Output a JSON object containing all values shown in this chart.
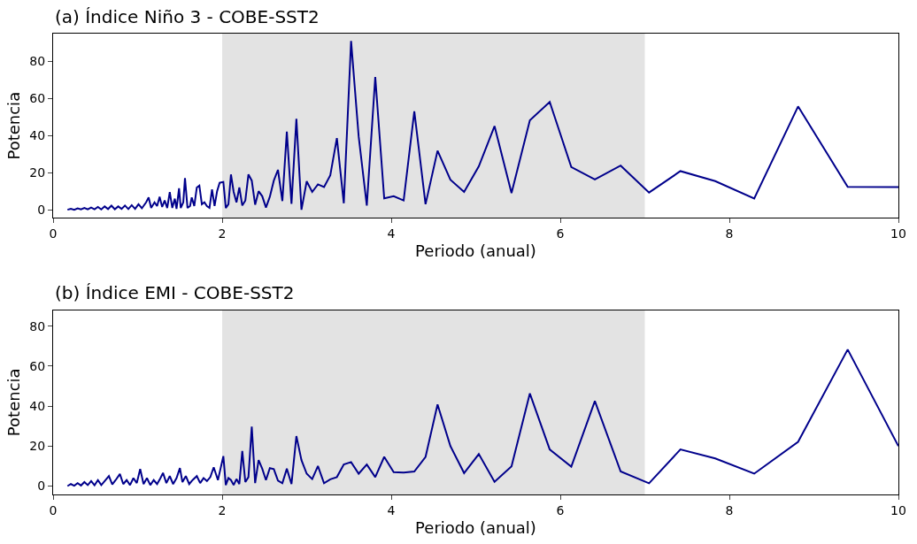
{
  "chart_data": [
    {
      "type": "line",
      "title": "(a) Índice Niño 3 - COBE-SST2",
      "xlabel": "Periodo (anual)",
      "ylabel": "Potencia",
      "xlim": [
        0,
        10
      ],
      "xticks": [
        0,
        2,
        4,
        6,
        8,
        10
      ],
      "ylim": [
        -4.4,
        94.8
      ],
      "yticks": [
        0,
        20,
        40,
        60,
        80
      ],
      "grid": false,
      "marker": "none",
      "line_style": "solid",
      "bands": [
        {
          "axis": "x",
          "from": 2,
          "to": 7,
          "color": "#e3e3e3"
        }
      ],
      "series": [
        {
          "color": "#00008b",
          "x": [
            0.17,
            0.21,
            0.25,
            0.29,
            0.33,
            0.37,
            0.41,
            0.45,
            0.49,
            0.53,
            0.57,
            0.61,
            0.65,
            0.69,
            0.73,
            0.77,
            0.81,
            0.85,
            0.89,
            0.93,
            0.97,
            1.01,
            1.05,
            1.1,
            1.13,
            1.16,
            1.2,
            1.23,
            1.26,
            1.29,
            1.32,
            1.35,
            1.38,
            1.41,
            1.44,
            1.46,
            1.49,
            1.51,
            1.54,
            1.56,
            1.59,
            1.62,
            1.64,
            1.67,
            1.7,
            1.73,
            1.76,
            1.79,
            1.82,
            1.85,
            1.88,
            1.91,
            1.94,
            1.97,
            2.014,
            2.043,
            2.074,
            2.104,
            2.136,
            2.169,
            2.203,
            2.238,
            2.274,
            2.311,
            2.35,
            2.39,
            2.431,
            2.474,
            2.518,
            2.564,
            2.611,
            2.66,
            2.712,
            2.765,
            2.82,
            2.878,
            2.938,
            3.0,
            3.065,
            3.133,
            3.205,
            3.279,
            3.357,
            3.439,
            3.525,
            3.615,
            3.711,
            3.811,
            3.917,
            4.029,
            4.147,
            4.273,
            4.406,
            4.548,
            4.7,
            4.862,
            5.036,
            5.222,
            5.423,
            5.64,
            5.875,
            6.13,
            6.409,
            6.714,
            7.05,
            7.421,
            7.833,
            8.294,
            8.813,
            9.4,
            10
          ],
          "values": [
            0,
            0.5,
            0,
            0.8,
            0.2,
            1,
            0.2,
            1.2,
            0.3,
            1.5,
            0.2,
            1.8,
            0.4,
            2.2,
            0.3,
            1.8,
            0.5,
            2.3,
            0.4,
            2.5,
            0.5,
            3,
            0.8,
            4,
            6.6,
            1,
            4,
            2,
            7,
            1.5,
            5,
            1,
            9.5,
            1,
            6,
            0.5,
            11.6,
            1,
            4,
            17,
            1,
            2,
            6.6,
            2,
            12,
            13,
            3,
            4,
            2,
            1,
            11,
            2,
            10,
            14.5,
            15,
            1,
            3,
            19,
            9.6,
            4,
            12,
            2.3,
            5,
            19,
            15.7,
            2.7,
            10,
            7.3,
            1.2,
            7,
            15.7,
            21.5,
            4.7,
            42,
            3.2,
            48.9,
            0,
            15.3,
            9.6,
            13.7,
            12.2,
            18.5,
            38.6,
            3.5,
            90.8,
            39.4,
            2.3,
            71.5,
            6.1,
            7.3,
            5,
            53,
            3,
            31.8,
            16.2,
            9.6,
            23.4,
            45,
            9,
            48.1,
            58,
            23,
            16.3,
            23.8,
            9.3,
            20.8,
            15.4,
            6.1,
            55.6,
            12.3,
            12.2
          ]
        }
      ]
    },
    {
      "type": "line",
      "title": "(b) Índice EMI - COBE-SST2",
      "xlabel": "Periodo (anual)",
      "ylabel": "Potencia",
      "xlim": [
        0,
        10
      ],
      "xticks": [
        0,
        2,
        4,
        6,
        8,
        10
      ],
      "ylim": [
        -4.2,
        88
      ],
      "yticks": [
        0,
        20,
        40,
        60,
        80
      ],
      "grid": false,
      "marker": "none",
      "line_style": "solid",
      "bands": [
        {
          "axis": "x",
          "from": 2,
          "to": 7,
          "color": "#e3e3e3"
        }
      ],
      "series": [
        {
          "color": "#00008b",
          "x": [
            0.17,
            0.21,
            0.25,
            0.29,
            0.33,
            0.37,
            0.41,
            0.45,
            0.49,
            0.53,
            0.57,
            0.61,
            0.66,
            0.7,
            0.74,
            0.79,
            0.83,
            0.87,
            0.91,
            0.95,
            0.99,
            1.03,
            1.07,
            1.11,
            1.15,
            1.19,
            1.23,
            1.27,
            1.3,
            1.34,
            1.38,
            1.42,
            1.46,
            1.5,
            1.53,
            1.57,
            1.61,
            1.65,
            1.7,
            1.74,
            1.78,
            1.82,
            1.86,
            1.9,
            1.95,
            2.014,
            2.043,
            2.074,
            2.104,
            2.136,
            2.169,
            2.203,
            2.238,
            2.274,
            2.311,
            2.35,
            2.39,
            2.431,
            2.474,
            2.518,
            2.564,
            2.611,
            2.66,
            2.712,
            2.765,
            2.82,
            2.878,
            2.938,
            3.0,
            3.065,
            3.133,
            3.205,
            3.279,
            3.357,
            3.439,
            3.525,
            3.615,
            3.711,
            3.811,
            3.917,
            4.029,
            4.147,
            4.273,
            4.406,
            4.548,
            4.7,
            4.862,
            5.036,
            5.222,
            5.423,
            5.64,
            5.875,
            6.13,
            6.409,
            6.714,
            7.05,
            7.421,
            7.833,
            8.294,
            8.813,
            9.4,
            10
          ],
          "values": [
            0,
            1,
            0.2,
            1.5,
            0.3,
            2,
            0.5,
            2.5,
            0.4,
            3,
            0.5,
            2.5,
            5,
            0.8,
            3,
            6,
            1,
            3,
            0.5,
            4,
            1.5,
            8.5,
            1,
            4,
            0.5,
            3,
            1,
            4,
            6.6,
            1.5,
            5,
            1,
            4,
            9,
            2,
            5,
            1,
            3,
            5,
            1.5,
            4,
            2.5,
            4.5,
            9.4,
            3,
            15,
            0.5,
            4,
            3,
            0.5,
            3.5,
            1,
            17.5,
            2,
            4.5,
            29.7,
            1.5,
            13,
            8.7,
            3,
            9,
            8.5,
            2.7,
            1.4,
            8.7,
            1,
            25,
            13,
            6.2,
            3.5,
            10,
            1.4,
            3.4,
            4.5,
            10.8,
            12,
            6.2,
            10.8,
            4.5,
            14.6,
            7,
            6.8,
            7.3,
            14.6,
            40.8,
            20,
            6.5,
            16,
            2.1,
            9.9,
            46.3,
            18.3,
            9.7,
            42.5,
            7.3,
            1.4,
            18.3,
            13.8,
            6.2,
            22.1,
            68.3,
            20
          ]
        }
      ]
    }
  ]
}
